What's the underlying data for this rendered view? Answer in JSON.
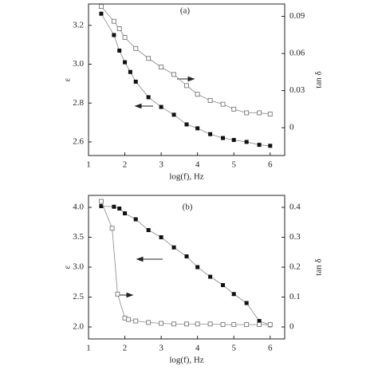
{
  "chart_data": [
    {
      "type": "line",
      "title": "(a)",
      "xlabel": "log(f), Hz",
      "ylabel": "ε",
      "y2label": "tan δ",
      "xlim": [
        1,
        6.4
      ],
      "xticks": [
        1,
        2,
        3,
        4,
        5,
        6
      ],
      "ylim": [
        2.53,
        3.31
      ],
      "yticks": [
        2.6,
        2.8,
        {
          "value": 3,
          "label": "3.0"
        },
        3.2
      ],
      "y2lim": [
        -0.0225,
        0.1
      ],
      "y2ticks": [
        0,
        0.03,
        0.06,
        0.09
      ],
      "series": [
        {
          "color": "#111111",
          "marker": "filled-square",
          "axis": "y",
          "x": [
            1.35,
            1.7,
            1.85,
            2.0,
            2.15,
            2.3,
            2.65,
            3.0,
            3.35,
            3.7,
            4.0,
            4.35,
            4.7,
            5.0,
            5.35,
            5.7,
            6.0
          ],
          "values": [
            3.26,
            3.15,
            3.07,
            3.01,
            2.96,
            2.91,
            2.83,
            2.78,
            2.74,
            2.69,
            2.67,
            2.64,
            2.62,
            2.61,
            2.6,
            2.585,
            2.58
          ]
        },
        {
          "color": "#777777",
          "marker": "open-square",
          "axis": "y2",
          "x": [
            1.35,
            1.7,
            1.85,
            2.0,
            2.3,
            2.65,
            3.0,
            3.35,
            3.7,
            4.0,
            4.35,
            4.7,
            5.0,
            5.35,
            5.7,
            6.0
          ],
          "values": [
            0.098,
            0.086,
            0.08,
            0.073,
            0.064,
            0.056,
            0.049,
            0.043,
            0.034,
            0.027,
            0.022,
            0.019,
            0.015,
            0.012,
            0.012,
            0.011
          ]
        }
      ]
    },
    {
      "type": "line",
      "title": "(b)",
      "xlabel": "log(f), Hz",
      "ylabel": "ε",
      "y2label": "tan δ",
      "xlim": [
        1,
        6.4
      ],
      "xticks": [
        1,
        2,
        3,
        4,
        5,
        6
      ],
      "ylim": [
        1.8,
        4.2
      ],
      "yticks": [
        {
          "value": 2,
          "label": "2.0"
        },
        2.5,
        {
          "value": 3,
          "label": "3.0"
        },
        3.5,
        {
          "value": 4,
          "label": "4.0"
        }
      ],
      "y2lim": [
        -0.04,
        0.44
      ],
      "y2ticks": [
        0,
        0.1,
        0.2,
        0.3,
        0.4
      ],
      "series": [
        {
          "color": "#111111",
          "marker": "filled-square",
          "axis": "y",
          "x": [
            1.35,
            1.7,
            1.85,
            2.0,
            2.3,
            2.65,
            3.0,
            3.35,
            3.7,
            4.0,
            4.35,
            4.7,
            5.0,
            5.35,
            5.7,
            6.0
          ],
          "values": [
            4.02,
            4.01,
            3.98,
            3.9,
            3.8,
            3.62,
            3.5,
            3.33,
            3.18,
            3.0,
            2.84,
            2.7,
            2.55,
            2.4,
            2.1,
            2.03
          ]
        },
        {
          "color": "#777777",
          "marker": "open-square",
          "axis": "y2",
          "x": [
            1.35,
            1.65,
            1.8,
            2.0,
            2.1,
            2.3,
            2.65,
            3.0,
            3.35,
            3.7,
            4.0,
            4.35,
            4.7,
            5.0,
            5.35,
            5.7,
            6.0
          ],
          "values": [
            0.42,
            0.33,
            0.11,
            0.03,
            0.025,
            0.02,
            0.015,
            0.012,
            0.01,
            0.01,
            0.01,
            0.01,
            0.008,
            0.008,
            0.008,
            0.008,
            0.008
          ]
        }
      ]
    }
  ]
}
